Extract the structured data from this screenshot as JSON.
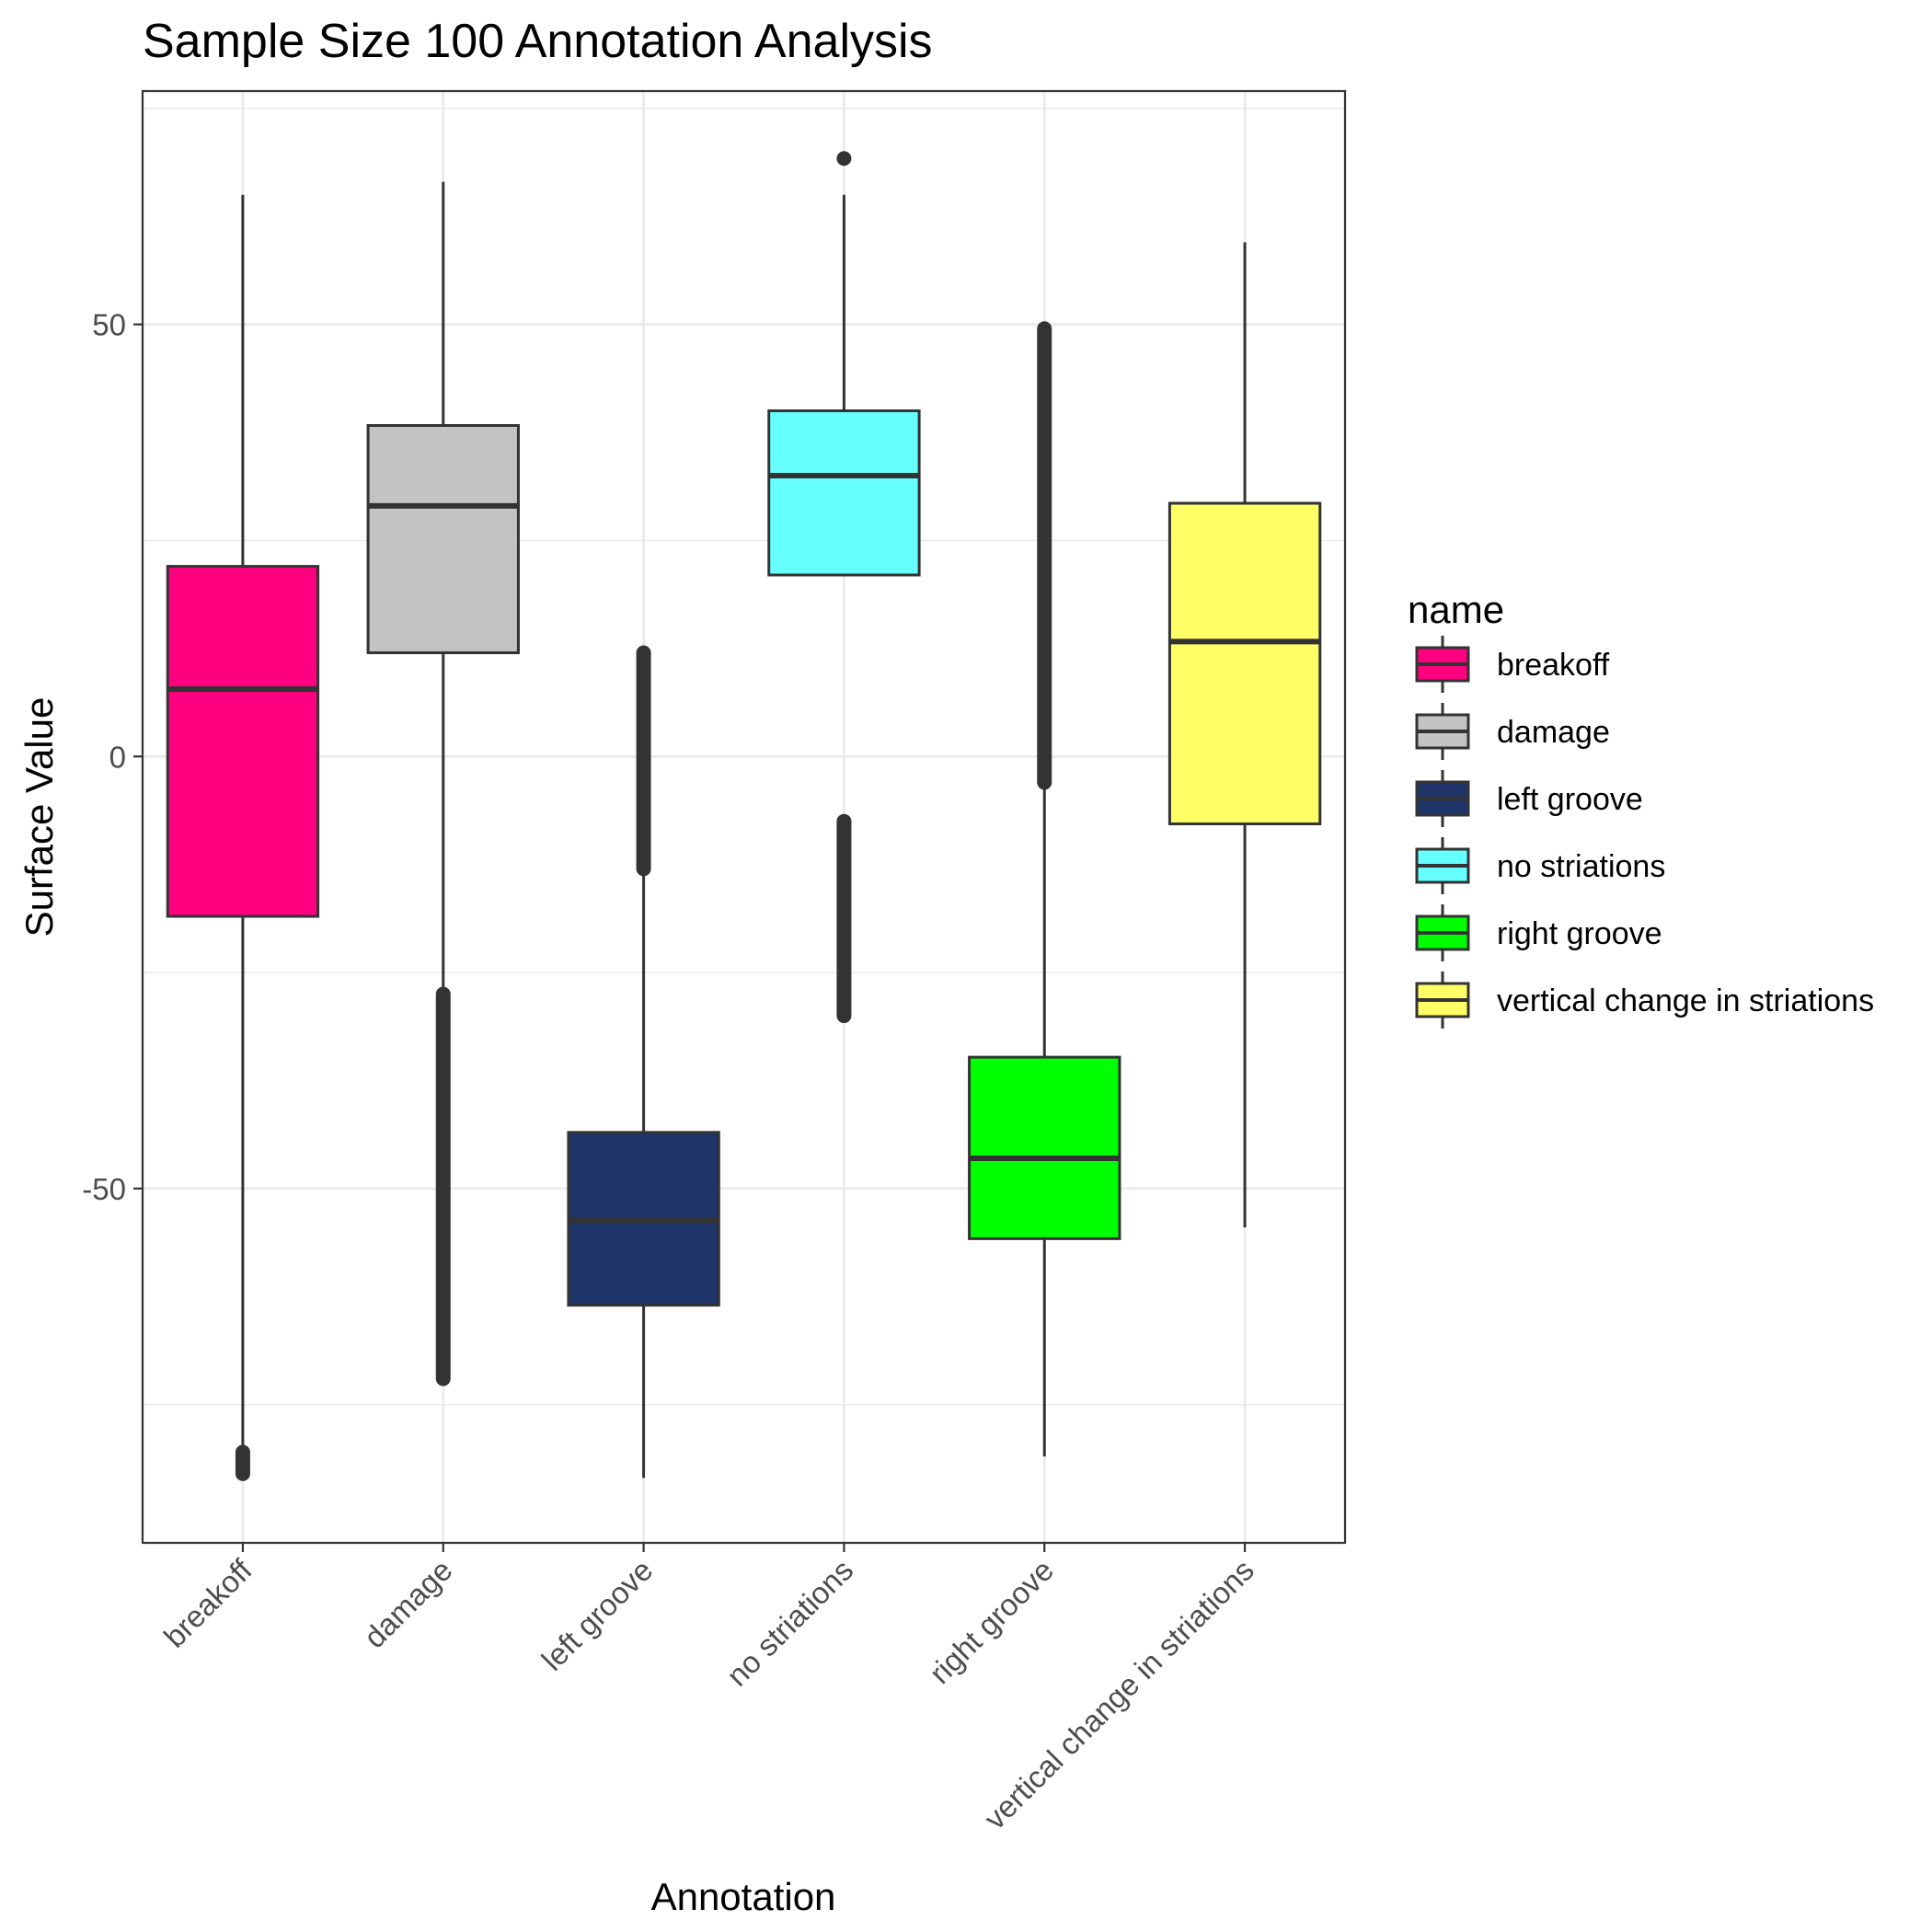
{
  "chart_data": {
    "type": "boxplot",
    "title": "Sample Size 100 Annotation Analysis",
    "xlabel": "Annotation",
    "ylabel": "Surface Value",
    "ylim": [
      -91,
      77
    ],
    "yticks": [
      -50,
      0,
      50
    ],
    "grid": true,
    "legend": {
      "title": "name",
      "placement": "right"
    },
    "categories": [
      "breakoff",
      "damage",
      "left groove",
      "no striations",
      "right groove",
      "vertical change in striations"
    ],
    "series": [
      {
        "name": "breakoff",
        "color": "#FF0080",
        "whisker_low": -80,
        "q1": -18.5,
        "median": 7.8,
        "q3": 22,
        "whisker_high": 65,
        "outliers_low": [
          -80.5,
          -81,
          -81.5,
          -82,
          -82.5,
          -83
        ],
        "outliers_high": []
      },
      {
        "name": "damage",
        "color": "#C3C3C3",
        "whisker_low": -27,
        "q1": 12,
        "median": 29,
        "q3": 38.3,
        "whisker_high": 66.5,
        "outliers_low": [
          -27.5,
          -72
        ],
        "outliers_high": []
      },
      {
        "name": "left groove",
        "color": "#1F3468",
        "whisker_low": -83.5,
        "q1": -63.5,
        "median": -53.7,
        "q3": -43.5,
        "whisker_high": -13.5,
        "outliers_low": [],
        "outliers_high": [
          -13,
          12
        ]
      },
      {
        "name": "no striations",
        "color": "#66FFFF",
        "whisker_low": 21,
        "q1": 21,
        "median": 32.5,
        "q3": 40,
        "whisker_high": 65,
        "outliers_low": [
          -7.5,
          -30
        ],
        "outliers_high": [
          69.2
        ]
      },
      {
        "name": "right groove",
        "color": "#00FF00",
        "whisker_low": -81,
        "q1": -55.8,
        "median": -46.5,
        "q3": -34.8,
        "whisker_high": -3,
        "outliers_low": [],
        "outliers_high": [
          -3,
          49.5
        ]
      },
      {
        "name": "vertical change in striations",
        "color": "#FFFF66",
        "whisker_low": -54.5,
        "q1": -7.8,
        "median": 13.3,
        "q3": 29.3,
        "whisker_high": 59.5,
        "outliers_low": [],
        "outliers_high": []
      }
    ]
  }
}
